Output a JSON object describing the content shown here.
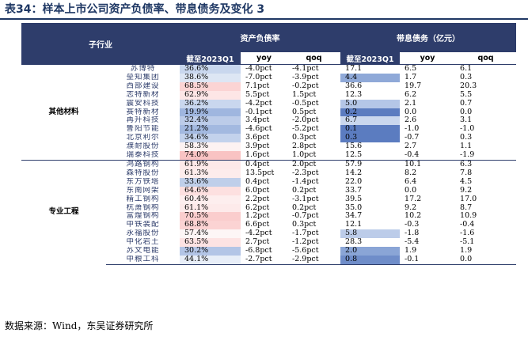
{
  "title": "表34：样本上市公司资产负债率、带息债务及变化 3",
  "headers": {
    "industry": "子行业",
    "debt_ratio_group": "资产负债率",
    "interest_debt_group": "带息债务（亿元）",
    "date_col": "截至2023Q1",
    "yoy": "yoy",
    "qoq": "qoq"
  },
  "groups": [
    {
      "name": "其他材料",
      "rows": [
        {
          "company": "苏博特",
          "r": "36.6%",
          "r_yoy": "-4.0pct",
          "r_qoq": "-4.1pct",
          "d": "17.1",
          "d_yoy": "6.5",
          "d_qoq": "6.1",
          "r_color": "#c9d7ee",
          "d_color": ""
        },
        {
          "company": "垒知集团",
          "r": "38.6%",
          "r_yoy": "-7.0pct",
          "r_qoq": "-3.9pct",
          "d": "4.4",
          "d_yoy": "1.7",
          "d_qoq": "0.3",
          "r_color": "#dde6f4",
          "d_color": "#8fa9d8"
        },
        {
          "company": "西部建设",
          "r": "68.5%",
          "r_yoy": "7.1pct",
          "r_qoq": "-0.2pct",
          "d": "36.6",
          "d_yoy": "19.7",
          "d_qoq": "20.3",
          "r_color": "#fbd4d4",
          "d_color": ""
        },
        {
          "company": "志特新材",
          "r": "62.9%",
          "r_yoy": "5.5pct",
          "r_qoq": "1.5pct",
          "d": "12.3",
          "d_yoy": "6.2",
          "d_qoq": "5.5",
          "r_color": "#fde6e6",
          "d_color": ""
        },
        {
          "company": "震安科技",
          "r": "36.2%",
          "r_yoy": "-4.2pct",
          "r_qoq": "-0.5pct",
          "d": "5.0",
          "d_yoy": "2.1",
          "d_qoq": "0.7",
          "r_color": "#c9d7ee",
          "d_color": "#b4c6e7"
        },
        {
          "company": "赛特新材",
          "r": "19.9%",
          "r_yoy": "-0.1pct",
          "r_qoq": "0.5pct",
          "d": "0.2",
          "d_yoy": "0.0",
          "d_qoq": "0.0",
          "r_color": "#9fb6df",
          "d_color": "#5b7cc0"
        },
        {
          "company": "再升科技",
          "r": "32.4%",
          "r_yoy": "3.4pct",
          "r_qoq": "-2.0pct",
          "d": "6.7",
          "d_yoy": "2.6",
          "d_qoq": "3.1",
          "r_color": "#bccce9",
          "d_color": "#c9d7ee"
        },
        {
          "company": "鲁阳节能",
          "r": "21.2%",
          "r_yoy": "-4.6pct",
          "r_qoq": "-5.2pct",
          "d": "0.1",
          "d_yoy": "-1.0",
          "d_qoq": "-1.0",
          "r_color": "#a3b9e0",
          "d_color": "#5b7cc0"
        },
        {
          "company": "北京利尔",
          "r": "34.6%",
          "r_yoy": "3.6pct",
          "r_qoq": "0.3pct",
          "d": "0.3",
          "d_yoy": "-0.7",
          "d_qoq": "0.3",
          "r_color": "#c3d2ec",
          "d_color": "#5b7cc0"
        },
        {
          "company": "濮耐股份",
          "r": "58.3%",
          "r_yoy": "3.9pct",
          "r_qoq": "2.8pct",
          "d": "15.6",
          "d_yoy": "2.7",
          "d_qoq": "1.1",
          "r_color": "#fdf2f2",
          "d_color": ""
        },
        {
          "company": "瑞泰科技",
          "r": "74.0%",
          "r_yoy": "1.6pct",
          "r_qoq": "1.0pct",
          "d": "12.5",
          "d_yoy": "-0.4",
          "d_qoq": "-1.9",
          "r_color": "#f9c3c3",
          "d_color": ""
        }
      ]
    },
    {
      "name": "专业工程",
      "rows": [
        {
          "company": "鸿路钢构",
          "r": "61.9%",
          "r_yoy": "0.4pct",
          "r_qoq": "2.0pct",
          "d": "57.9",
          "d_yoy": "10.1",
          "d_qoq": "6.3",
          "r_color": "#fde9e9",
          "d_color": ""
        },
        {
          "company": "森特股份",
          "r": "61.3%",
          "r_yoy": "13.5pct",
          "r_qoq": "-2.3pct",
          "d": "14.2",
          "d_yoy": "8.2",
          "d_qoq": "7.8",
          "r_color": "#fdecec",
          "d_color": ""
        },
        {
          "company": "东方铁塔",
          "r": "33.6%",
          "r_yoy": "0.4pct",
          "r_qoq": "-1.4pct",
          "d": "22.0",
          "d_yoy": "6.4",
          "d_qoq": "4.5",
          "r_color": "#bfcfea",
          "d_color": ""
        },
        {
          "company": "东南网架",
          "r": "64.6%",
          "r_yoy": "6.0pct",
          "r_qoq": "0.2pct",
          "d": "33.7",
          "d_yoy": "0.0",
          "d_qoq": "9.2",
          "r_color": "#fde0e0",
          "d_color": ""
        },
        {
          "company": "精工钢构",
          "r": "60.4%",
          "r_yoy": "2.2pct",
          "r_qoq": "-3.1pct",
          "d": "39.5",
          "d_yoy": "17.2",
          "d_qoq": "17.0",
          "r_color": "#fdeeee",
          "d_color": ""
        },
        {
          "company": "杭萧钢构",
          "r": "61.1%",
          "r_yoy": "6.2pct",
          "r_qoq": "0.2pct",
          "d": "35.0",
          "d_yoy": "9.2",
          "d_qoq": "8.7",
          "r_color": "#fdeaea",
          "d_color": ""
        },
        {
          "company": "富煌钢构",
          "r": "70.5%",
          "r_yoy": "1.2pct",
          "r_qoq": "-0.7pct",
          "d": "34.7",
          "d_yoy": "10.2",
          "d_qoq": "10.9",
          "r_color": "#facdcd",
          "d_color": ""
        },
        {
          "company": "中铁装配",
          "r": "68.8%",
          "r_yoy": "6.6pct",
          "r_qoq": "0.3pct",
          "d": "12.1",
          "d_yoy": "-0.3",
          "d_qoq": "-0.4",
          "r_color": "#fbd3d3",
          "d_color": ""
        },
        {
          "company": "永福股份",
          "r": "57.4%",
          "r_yoy": "-4.2pct",
          "r_qoq": "-1.7pct",
          "d": "5.8",
          "d_yoy": "-1.8",
          "d_qoq": "-1.6",
          "r_color": "#fdf6f6",
          "d_color": "#bccce9"
        },
        {
          "company": "中化岩土",
          "r": "63.5%",
          "r_yoy": "2.7pct",
          "r_qoq": "-1.2pct",
          "d": "28.3",
          "d_yoy": "-5.4",
          "d_qoq": "-5.1",
          "r_color": "#fde3e3",
          "d_color": ""
        },
        {
          "company": "苏文电能",
          "r": "30.2%",
          "r_yoy": "-6.8pct",
          "r_qoq": "-5.6pct",
          "d": "2.0",
          "d_yoy": "1.9",
          "d_qoq": "1.9",
          "r_color": "#b3c5e6",
          "d_color": "#8aa5d6"
        },
        {
          "company": "中粮工科",
          "r": "44.1%",
          "r_yoy": "-2.7pct",
          "r_qoq": "-2.9pct",
          "d": "0.8",
          "d_yoy": "-0.1",
          "d_qoq": "0.0",
          "r_color": "#e8eef8",
          "d_color": "#6f8dc9"
        }
      ]
    }
  ],
  "source": "数据来源：Wind，东吴证券研究所"
}
